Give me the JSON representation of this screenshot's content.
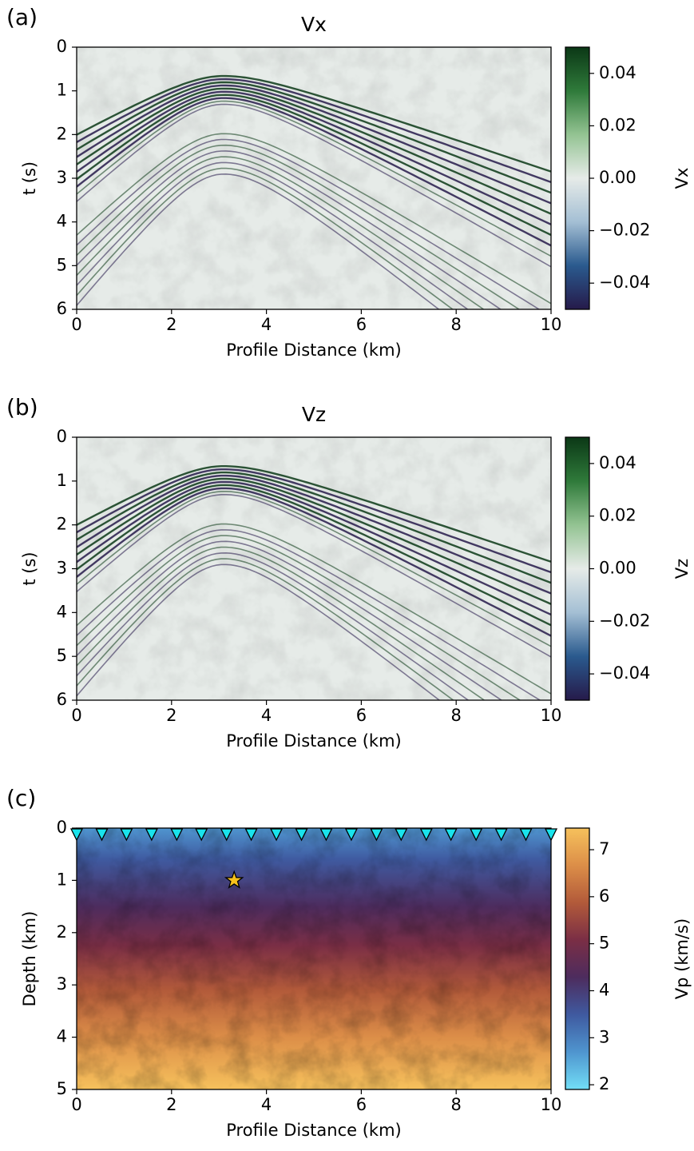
{
  "chart_data": [
    {
      "type": "heatmap",
      "panel_label": "(a)",
      "title": "Vx",
      "xlabel": "Profile Distance (km)",
      "ylabel": "t (s)",
      "xlim": [
        0,
        10
      ],
      "xticks": [
        0,
        2,
        4,
        6,
        8,
        10
      ],
      "ylim": [
        0,
        6
      ],
      "yticks": [
        0,
        1,
        2,
        3,
        4,
        5,
        6
      ],
      "y_inverted": true,
      "colorbar": {
        "label": "Vx",
        "clim": [
          -0.05,
          0.05
        ],
        "ticks": [
          0.04,
          0.02,
          {
            "value": 0,
            "label": "0.00"
          },
          {
            "value": -0.02,
            "label": "−0.02"
          },
          {
            "value": -0.04,
            "label": "−0.04"
          }
        ],
        "colormap": [
          "#261a4a",
          "#2a5a8e",
          "#a4bfd4",
          "#e6ebe8",
          "#93c392",
          "#2f7a3a",
          "#0b3816"
        ]
      }
    },
    {
      "type": "heatmap",
      "panel_label": "(b)",
      "title": "Vz",
      "xlabel": "Profile Distance (km)",
      "ylabel": "t (s)",
      "xlim": [
        0,
        10
      ],
      "xticks": [
        0,
        2,
        4,
        6,
        8,
        10
      ],
      "ylim": [
        0,
        6
      ],
      "yticks": [
        0,
        1,
        2,
        3,
        4,
        5,
        6
      ],
      "y_inverted": true,
      "colorbar": {
        "label": "Vz",
        "clim": [
          -0.05,
          0.05
        ],
        "ticks": [
          0.04,
          0.02,
          {
            "value": 0,
            "label": "0.00"
          },
          {
            "value": -0.02,
            "label": "−0.02"
          },
          {
            "value": -0.04,
            "label": "−0.04"
          }
        ],
        "colormap": [
          "#261a4a",
          "#2a5a8e",
          "#a4bfd4",
          "#e6ebe8",
          "#93c392",
          "#2f7a3a",
          "#0b3816"
        ]
      }
    },
    {
      "type": "heatmap",
      "panel_label": "(c)",
      "xlabel": "Profile Distance (km)",
      "ylabel": "Depth (km)",
      "xlim": [
        0,
        10
      ],
      "xticks": [
        0,
        2,
        4,
        6,
        8,
        10
      ],
      "ylim": [
        0,
        5
      ],
      "yticks": [
        0,
        1,
        2,
        3,
        4,
        5
      ],
      "y_inverted": true,
      "colorbar": {
        "label": "Vp (km/s)",
        "clim": [
          1.9,
          7.46
        ],
        "ticks": [
          2,
          3,
          4,
          5,
          6,
          7
        ],
        "colormap": [
          "#72def6",
          "#4f95cf",
          "#3f5aa0",
          "#4d2c5e",
          "#7a2e45",
          "#b25a3a",
          "#dc8e48",
          "#f6c15c"
        ]
      },
      "receivers": {
        "x": [
          0,
          0.53,
          1.05,
          1.58,
          2.11,
          2.63,
          3.16,
          3.68,
          4.21,
          4.74,
          5.26,
          5.79,
          6.32,
          6.84,
          7.37,
          7.89,
          8.42,
          8.95,
          9.47,
          10
        ],
        "y": [
          0,
          0,
          0,
          0,
          0,
          0,
          0,
          0,
          0,
          0,
          0,
          0,
          0,
          0,
          0,
          0,
          0,
          0,
          0,
          0
        ],
        "color": "#19e3ec"
      },
      "source": {
        "x": [
          3.32
        ],
        "y": [
          1.0
        ],
        "color": "#f7c21c"
      }
    }
  ]
}
